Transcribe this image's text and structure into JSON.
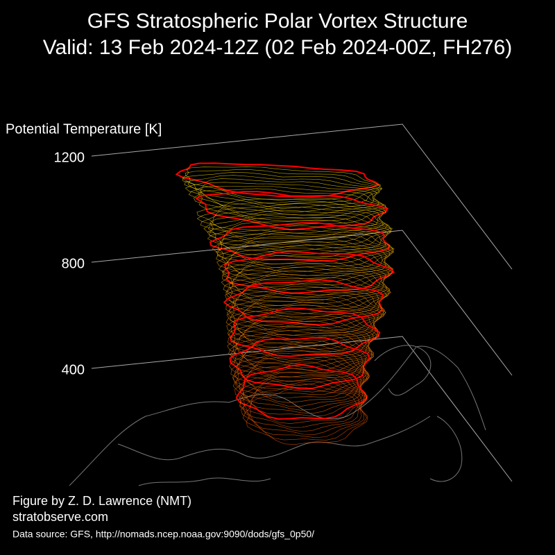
{
  "chart_data": {
    "type": "vortex3d",
    "title": "GFS Stratospheric Polar Vortex Structure",
    "subtitle": "Valid: 13 Feb 2024-12Z  (02 Feb 2024-00Z, FH276)",
    "z_label": "Potential Temperature [K]",
    "ylim": [
      400,
      1200
    ],
    "yticks": [
      400,
      800,
      1200
    ],
    "grid": true,
    "credit": "Figure by Z. D. Lawrence (NMT)",
    "website": "stratobserve.com",
    "source": "Data source: GFS, http://nomads.ncep.noaa.gov:9090/dods/gfs_0p50/"
  }
}
